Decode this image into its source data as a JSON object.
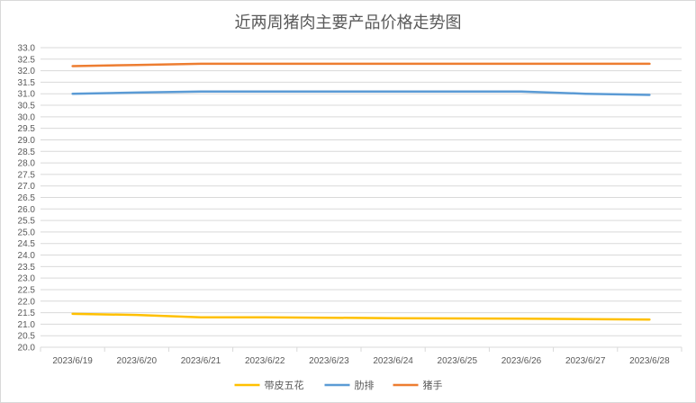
{
  "chart_data": {
    "type": "line",
    "title": "近两周猪肉主要产品价格走势图",
    "xlabel": "",
    "ylabel": "",
    "categories": [
      "2023/6/19",
      "2023/6/20",
      "2023/6/21",
      "2023/6/22",
      "2023/6/23",
      "2023/6/24",
      "2023/6/25",
      "2023/6/26",
      "2023/6/27",
      "2023/6/28"
    ],
    "ylim": [
      20.0,
      33.0
    ],
    "ytick_step": 0.5,
    "grid": true,
    "legend_position": "bottom",
    "series": [
      {
        "name": "带皮五花",
        "color": "#ffc000",
        "values": [
          21.45,
          21.4,
          21.3,
          21.3,
          21.28,
          21.26,
          21.25,
          21.24,
          21.22,
          21.2
        ]
      },
      {
        "name": "肋排",
        "color": "#5b9bd5",
        "values": [
          31.0,
          31.05,
          31.1,
          31.1,
          31.1,
          31.1,
          31.1,
          31.1,
          31.0,
          30.95
        ]
      },
      {
        "name": "猪手",
        "color": "#ed7d31",
        "values": [
          32.2,
          32.25,
          32.3,
          32.3,
          32.3,
          32.3,
          32.3,
          32.3,
          32.3,
          32.3
        ]
      }
    ]
  }
}
